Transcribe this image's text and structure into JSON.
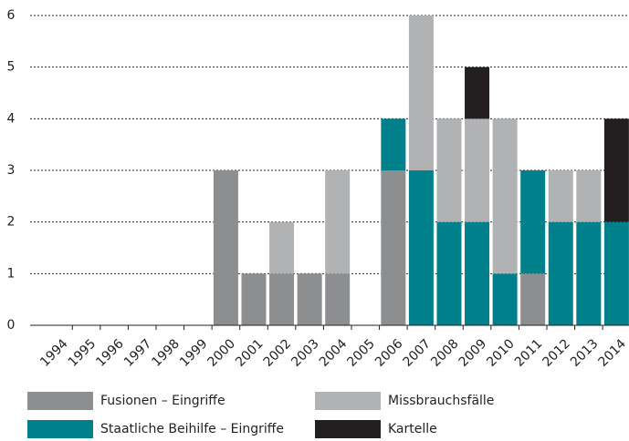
{
  "chart_data": {
    "type": "stacked-bar",
    "categories": [
      "1994",
      "1995",
      "1996",
      "1997",
      "1998",
      "1999",
      "2000",
      "2001",
      "2002",
      "2003",
      "2004",
      "2005",
      "2006",
      "2007",
      "2008",
      "2009",
      "2010",
      "2011",
      "2012",
      "2013",
      "2014"
    ],
    "series": [
      {
        "name": "Fusionen – Eingriffe",
        "color": "#8d8e90",
        "values": [
          0,
          0,
          0,
          0,
          0,
          0,
          3,
          1,
          1,
          1,
          1,
          0,
          3,
          0,
          0,
          0,
          0,
          1,
          0,
          0,
          0
        ]
      },
      {
        "name": "Staatliche Beihilfe – Eingriffe",
        "color": "#00808a",
        "values": [
          0,
          0,
          0,
          0,
          0,
          0,
          0,
          0,
          0,
          0,
          0,
          0,
          1,
          3,
          2,
          2,
          1,
          2,
          2,
          2,
          2
        ]
      },
      {
        "name": "Missbrauchsfälle",
        "color": "#b1b2b4",
        "values": [
          0,
          0,
          0,
          0,
          0,
          0,
          0,
          0,
          1,
          0,
          2,
          0,
          0,
          3,
          2,
          2,
          3,
          0,
          1,
          1,
          0
        ]
      },
      {
        "name": "Kartelle",
        "color": "#231f20",
        "values": [
          0,
          0,
          0,
          0,
          0,
          0,
          0,
          0,
          0,
          0,
          0,
          0,
          0,
          0,
          0,
          1,
          0,
          0,
          0,
          0,
          2
        ]
      }
    ],
    "ylim": [
      0,
      6
    ],
    "yticks": [
      0,
      1,
      2,
      3,
      4,
      5,
      6
    ],
    "grid": true
  }
}
